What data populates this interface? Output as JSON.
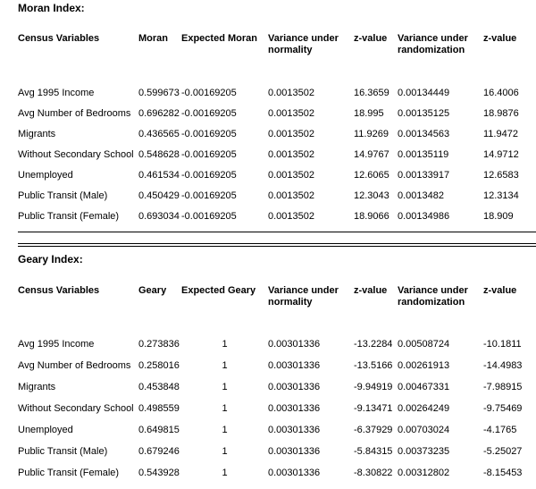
{
  "page": {
    "background": "#ffffff",
    "text_color": "#000000"
  },
  "sections": [
    {
      "title": "Moran Index:",
      "columns": [
        "Census Variables",
        "Moran",
        "Expected Moran",
        "Variance under normality",
        "z-value",
        "Variance under randomization",
        "z-value"
      ],
      "rows": [
        [
          "Avg 1995 Income",
          "0.599673",
          "-0.00169205",
          "0.0013502",
          "16.3659",
          "0.00134449",
          "16.4006"
        ],
        [
          "Avg Number of Bedrooms",
          "0.696282",
          "-0.00169205",
          "0.0013502",
          "18.995",
          "0.00135125",
          "18.9876"
        ],
        [
          "Migrants",
          "0.436565",
          "-0.00169205",
          "0.0013502",
          "11.9269",
          "0.00134563",
          "11.9472"
        ],
        [
          "Without Secondary School",
          "0.548628",
          "-0.00169205",
          "0.0013502",
          "14.9767",
          "0.00135119",
          "14.9712"
        ],
        [
          "Unemployed",
          "0.461534",
          "-0.00169205",
          "0.0013502",
          "12.6065",
          "0.00133917",
          "12.6583"
        ],
        [
          "Public Transit (Male)",
          "0.450429",
          "-0.00169205",
          "0.0013502",
          "12.3043",
          "0.0013482",
          "12.3134"
        ],
        [
          "Public Transit (Female)",
          "0.693034",
          "-0.00169205",
          "0.0013502",
          "18.9066",
          "0.00134986",
          "18.909"
        ]
      ]
    },
    {
      "title": "Geary Index:",
      "columns": [
        "Census Variables",
        "Geary",
        "Expected Geary",
        "Variance under normality",
        "z-value",
        "Variance under randomization",
        "z-value"
      ],
      "rows": [
        [
          "Avg 1995 Income",
          "0.273836",
          "1",
          "0.00301336",
          "-13.2284",
          "0.00508724",
          "-10.1811"
        ],
        [
          "Avg Number of Bedrooms",
          "0.258016",
          "1",
          "0.00301336",
          "-13.5166",
          "0.00261913",
          "-14.4983"
        ],
        [
          "Migrants",
          "0.453848",
          "1",
          "0.00301336",
          "-9.94919",
          "0.00467331",
          "-7.98915"
        ],
        [
          "Without Secondary School",
          "0.498559",
          "1",
          "0.00301336",
          "-9.13471",
          "0.00264249",
          "-9.75469"
        ],
        [
          "Unemployed",
          "0.649815",
          "1",
          "0.00301336",
          "-6.37929",
          "0.00703024",
          "-4.1765"
        ],
        [
          "Public Transit (Male)",
          "0.679246",
          "1",
          "0.00301336",
          "-5.84315",
          "0.00373235",
          "-5.25027"
        ],
        [
          "Public Transit (Female)",
          "0.543928",
          "1",
          "0.00301336",
          "-8.30822",
          "0.00312802",
          "-8.15453"
        ]
      ]
    }
  ]
}
